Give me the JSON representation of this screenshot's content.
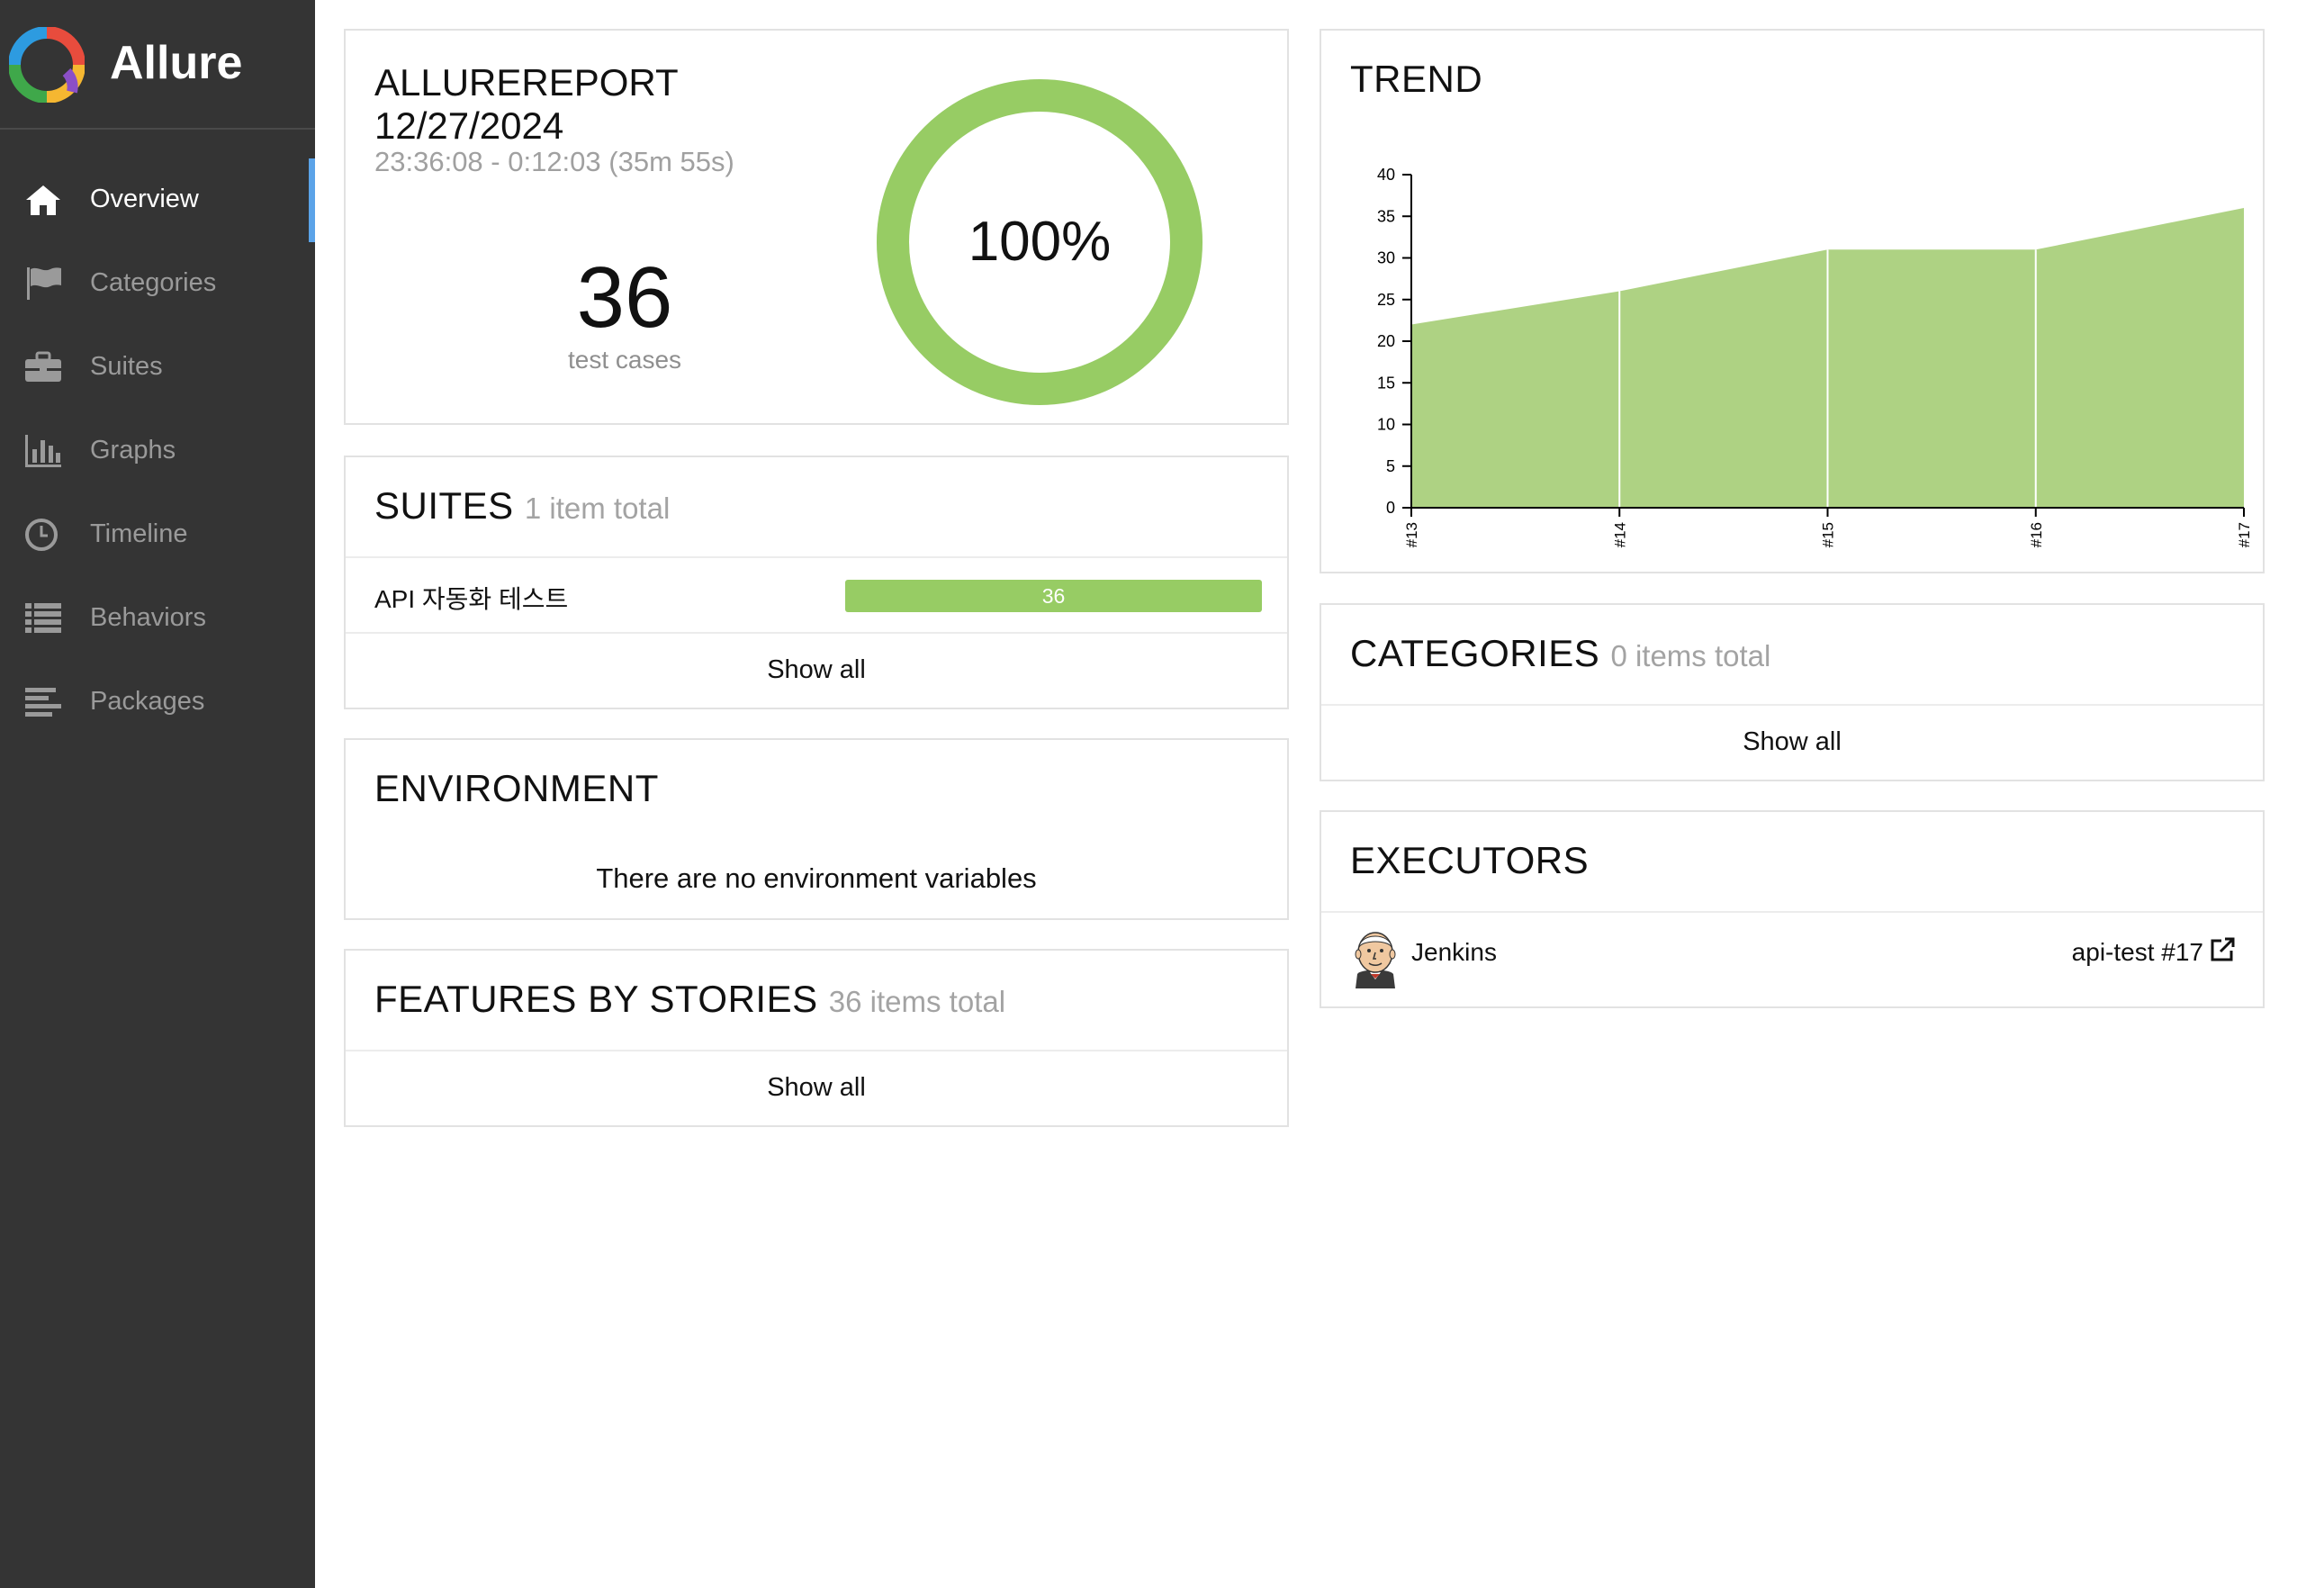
{
  "brand": {
    "name": "Allure"
  },
  "nav": [
    {
      "label": "Overview",
      "icon": "home-icon",
      "active": true
    },
    {
      "label": "Categories",
      "icon": "flag-icon"
    },
    {
      "label": "Suites",
      "icon": "briefcase-icon"
    },
    {
      "label": "Graphs",
      "icon": "bar-chart-icon"
    },
    {
      "label": "Timeline",
      "icon": "clock-icon"
    },
    {
      "label": "Behaviors",
      "icon": "list-icon"
    },
    {
      "label": "Packages",
      "icon": "align-left-icon"
    }
  ],
  "summary": {
    "report_name": "ALLUREREPORT",
    "report_date": "12/27/2024",
    "time_range": "23:36:08 - 0:12:03 (35m 55s)",
    "test_count": "36",
    "test_count_label": "test cases",
    "pass_percent": "100%",
    "pass_fraction": 1.0
  },
  "suites": {
    "title": "SUITES",
    "subtitle": "1 item total",
    "items": [
      {
        "name": "API 자동화 테스트",
        "count": "36"
      }
    ],
    "show_all": "Show all"
  },
  "environment": {
    "title": "ENVIRONMENT",
    "empty_text": "There are no environment variables"
  },
  "features": {
    "title": "FEATURES BY STORIES",
    "subtitle": "36 items total",
    "show_all": "Show all"
  },
  "trend": {
    "title": "TREND"
  },
  "categories": {
    "title": "CATEGORIES",
    "subtitle": "0 items total",
    "show_all": "Show all"
  },
  "executors": {
    "title": "EXECUTORS",
    "name": "Jenkins",
    "build": "api-test #17",
    "avatar_icon": "jenkins-avatar-icon",
    "link_icon": "external-link-icon"
  },
  "colors": {
    "sidebar_bg": "#343434",
    "passed": "#97cc64",
    "active_marker": "#5ba3e8"
  },
  "chart_data": {
    "type": "area",
    "x": [
      "#13",
      "#14",
      "#15",
      "#16",
      "#17"
    ],
    "series": [
      {
        "values": [
          22,
          26,
          31,
          31,
          36
        ]
      }
    ],
    "ylim": [
      0,
      40
    ],
    "yticks": [
      0,
      5,
      10,
      15,
      20,
      25,
      30,
      35,
      40
    ],
    "grid": false,
    "color": "#97cc64"
  }
}
